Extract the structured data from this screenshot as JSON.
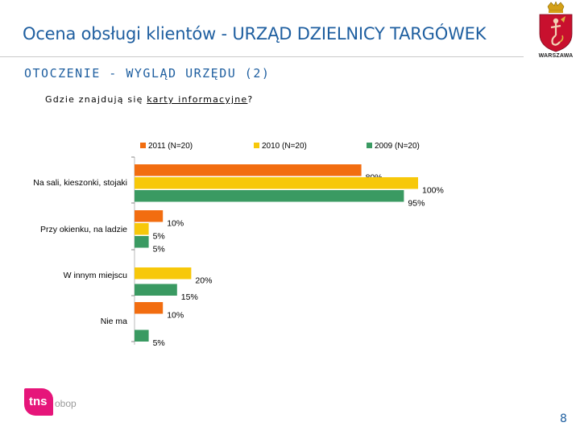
{
  "header": {
    "title": "Ocena obsługi klientów - URZĄD DZIELNICY TARGÓWEK",
    "section": "OTOCZENIE - WYGLĄD URZĘDU (2)",
    "question_prefix": "Gdzie znajdują się ",
    "question_underlined": "karty informacyjne",
    "question_suffix": "?",
    "logo_city": "WARSZAWA"
  },
  "footer": {
    "brand": "tns",
    "brand_sub": "obop",
    "page_number": "8"
  },
  "colors": {
    "title": "#1f5fa0",
    "series_2011": "#f26d10",
    "series_2010": "#f7c80a",
    "series_2009": "#3a9a62"
  },
  "chart_data": {
    "type": "bar",
    "orientation": "horizontal",
    "title": "Gdzie znajdują się karty informacyjne?",
    "categories": [
      "Na sali, kieszonki, stojaki",
      "Przy okienku, na ladzie",
      "W innym miejscu",
      "Nie ma"
    ],
    "series": [
      {
        "name": "2011 (N=20)",
        "color": "#f26d10",
        "values": [
          80,
          10,
          null,
          10
        ],
        "labels": [
          "80%",
          "10%",
          "",
          "10%"
        ]
      },
      {
        "name": "2010 (N=20)",
        "color": "#f7c80a",
        "values": [
          100,
          5,
          20,
          null
        ],
        "labels": [
          "100%",
          "5%",
          "20%",
          ""
        ]
      },
      {
        "name": "2009 (N=20)",
        "color": "#3a9a62",
        "values": [
          95,
          5,
          15,
          5
        ],
        "labels": [
          "95%",
          "5%",
          "15%",
          "5%"
        ]
      }
    ],
    "xlim": [
      0,
      100
    ],
    "value_suffix": "%",
    "legend_position": "top"
  }
}
